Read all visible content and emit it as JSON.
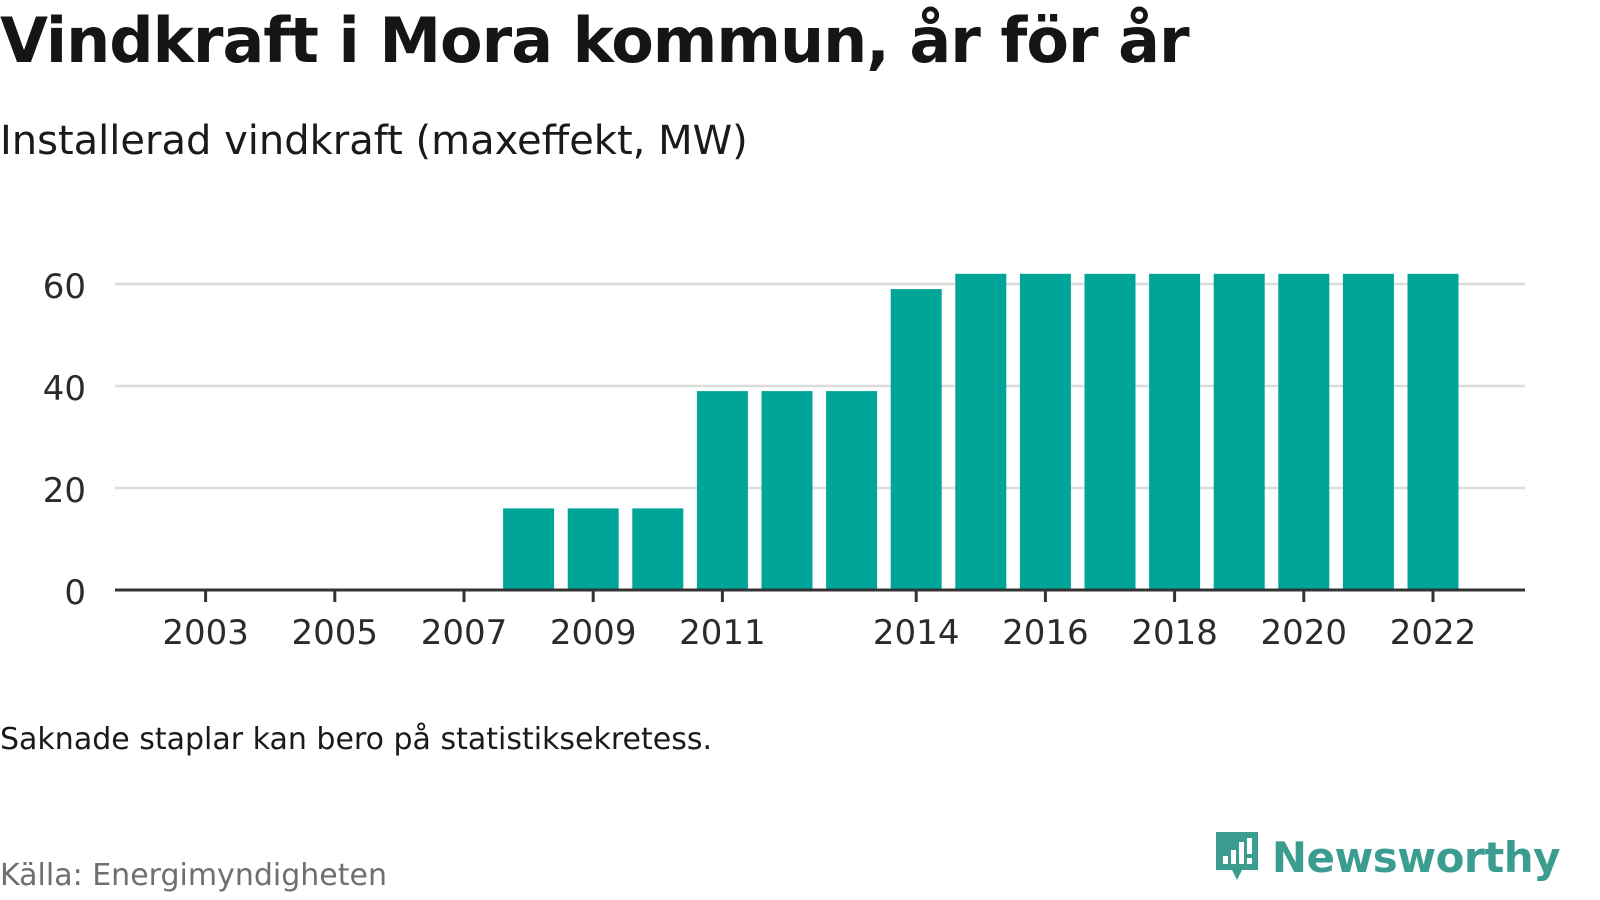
{
  "title": "Vindkraft i Mora kommun, år för år",
  "subtitle": "Installerad vindkraft (maxeffekt, MW)",
  "note": "Saknade staplar kan bero på statistiksekretess.",
  "source": "Källa: Energimyndigheten",
  "brand": "Newsworthy",
  "colors": {
    "bar": "#00a59a",
    "grid": "#dcdcdc",
    "axis": "#333333",
    "brand": "#3a9d90"
  },
  "chart_data": {
    "type": "bar",
    "categories": [
      "2002",
      "2003",
      "2004",
      "2005",
      "2006",
      "2007",
      "2008",
      "2009",
      "2010",
      "2011",
      "2012",
      "2013",
      "2014",
      "2015",
      "2016",
      "2017",
      "2018",
      "2019",
      "2020",
      "2021",
      "2022"
    ],
    "values": [
      0,
      0,
      0,
      0,
      0,
      0,
      16,
      16,
      16,
      39,
      39,
      39,
      59,
      62,
      62,
      62,
      62,
      62,
      62,
      62,
      62
    ],
    "x_tick_labels": [
      "2003",
      "2005",
      "2007",
      "2009",
      "2011",
      "2014",
      "2016",
      "2018",
      "2020",
      "2022"
    ],
    "y_ticks": [
      0,
      20,
      40,
      60
    ],
    "ylim": [
      0,
      65
    ],
    "grid": true,
    "xlabel": "",
    "ylabel": ""
  }
}
